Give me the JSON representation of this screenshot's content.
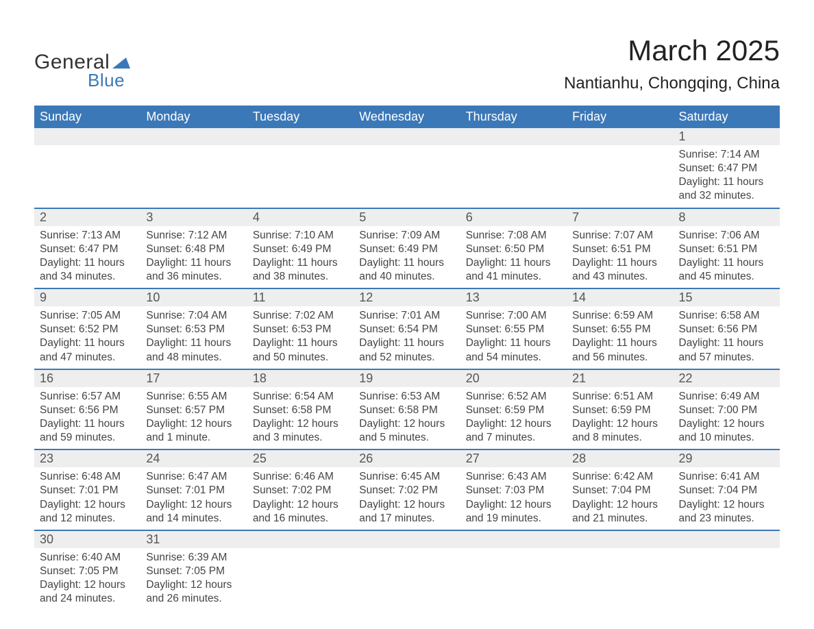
{
  "brand": {
    "part1": "General",
    "part2": "Blue",
    "accent_color": "#3b78b8"
  },
  "header": {
    "month_title": "March 2025",
    "location": "Nantianhu, Chongqing, China"
  },
  "colors": {
    "header_bg": "#3b78b8",
    "header_text": "#ffffff",
    "daynum_bg": "#eeeeee",
    "row_border": "#3b78b8",
    "body_text": "#444444",
    "page_bg": "#ffffff"
  },
  "calendar": {
    "day_labels": [
      "Sunday",
      "Monday",
      "Tuesday",
      "Wednesday",
      "Thursday",
      "Friday",
      "Saturday"
    ],
    "weeks": [
      [
        null,
        null,
        null,
        null,
        null,
        null,
        {
          "n": "1",
          "sunrise": "Sunrise: 7:14 AM",
          "sunset": "Sunset: 6:47 PM",
          "daylight": "Daylight: 11 hours and 32 minutes."
        }
      ],
      [
        {
          "n": "2",
          "sunrise": "Sunrise: 7:13 AM",
          "sunset": "Sunset: 6:47 PM",
          "daylight": "Daylight: 11 hours and 34 minutes."
        },
        {
          "n": "3",
          "sunrise": "Sunrise: 7:12 AM",
          "sunset": "Sunset: 6:48 PM",
          "daylight": "Daylight: 11 hours and 36 minutes."
        },
        {
          "n": "4",
          "sunrise": "Sunrise: 7:10 AM",
          "sunset": "Sunset: 6:49 PM",
          "daylight": "Daylight: 11 hours and 38 minutes."
        },
        {
          "n": "5",
          "sunrise": "Sunrise: 7:09 AM",
          "sunset": "Sunset: 6:49 PM",
          "daylight": "Daylight: 11 hours and 40 minutes."
        },
        {
          "n": "6",
          "sunrise": "Sunrise: 7:08 AM",
          "sunset": "Sunset: 6:50 PM",
          "daylight": "Daylight: 11 hours and 41 minutes."
        },
        {
          "n": "7",
          "sunrise": "Sunrise: 7:07 AM",
          "sunset": "Sunset: 6:51 PM",
          "daylight": "Daylight: 11 hours and 43 minutes."
        },
        {
          "n": "8",
          "sunrise": "Sunrise: 7:06 AM",
          "sunset": "Sunset: 6:51 PM",
          "daylight": "Daylight: 11 hours and 45 minutes."
        }
      ],
      [
        {
          "n": "9",
          "sunrise": "Sunrise: 7:05 AM",
          "sunset": "Sunset: 6:52 PM",
          "daylight": "Daylight: 11 hours and 47 minutes."
        },
        {
          "n": "10",
          "sunrise": "Sunrise: 7:04 AM",
          "sunset": "Sunset: 6:53 PM",
          "daylight": "Daylight: 11 hours and 48 minutes."
        },
        {
          "n": "11",
          "sunrise": "Sunrise: 7:02 AM",
          "sunset": "Sunset: 6:53 PM",
          "daylight": "Daylight: 11 hours and 50 minutes."
        },
        {
          "n": "12",
          "sunrise": "Sunrise: 7:01 AM",
          "sunset": "Sunset: 6:54 PM",
          "daylight": "Daylight: 11 hours and 52 minutes."
        },
        {
          "n": "13",
          "sunrise": "Sunrise: 7:00 AM",
          "sunset": "Sunset: 6:55 PM",
          "daylight": "Daylight: 11 hours and 54 minutes."
        },
        {
          "n": "14",
          "sunrise": "Sunrise: 6:59 AM",
          "sunset": "Sunset: 6:55 PM",
          "daylight": "Daylight: 11 hours and 56 minutes."
        },
        {
          "n": "15",
          "sunrise": "Sunrise: 6:58 AM",
          "sunset": "Sunset: 6:56 PM",
          "daylight": "Daylight: 11 hours and 57 minutes."
        }
      ],
      [
        {
          "n": "16",
          "sunrise": "Sunrise: 6:57 AM",
          "sunset": "Sunset: 6:56 PM",
          "daylight": "Daylight: 11 hours and 59 minutes."
        },
        {
          "n": "17",
          "sunrise": "Sunrise: 6:55 AM",
          "sunset": "Sunset: 6:57 PM",
          "daylight": "Daylight: 12 hours and 1 minute."
        },
        {
          "n": "18",
          "sunrise": "Sunrise: 6:54 AM",
          "sunset": "Sunset: 6:58 PM",
          "daylight": "Daylight: 12 hours and 3 minutes."
        },
        {
          "n": "19",
          "sunrise": "Sunrise: 6:53 AM",
          "sunset": "Sunset: 6:58 PM",
          "daylight": "Daylight: 12 hours and 5 minutes."
        },
        {
          "n": "20",
          "sunrise": "Sunrise: 6:52 AM",
          "sunset": "Sunset: 6:59 PM",
          "daylight": "Daylight: 12 hours and 7 minutes."
        },
        {
          "n": "21",
          "sunrise": "Sunrise: 6:51 AM",
          "sunset": "Sunset: 6:59 PM",
          "daylight": "Daylight: 12 hours and 8 minutes."
        },
        {
          "n": "22",
          "sunrise": "Sunrise: 6:49 AM",
          "sunset": "Sunset: 7:00 PM",
          "daylight": "Daylight: 12 hours and 10 minutes."
        }
      ],
      [
        {
          "n": "23",
          "sunrise": "Sunrise: 6:48 AM",
          "sunset": "Sunset: 7:01 PM",
          "daylight": "Daylight: 12 hours and 12 minutes."
        },
        {
          "n": "24",
          "sunrise": "Sunrise: 6:47 AM",
          "sunset": "Sunset: 7:01 PM",
          "daylight": "Daylight: 12 hours and 14 minutes."
        },
        {
          "n": "25",
          "sunrise": "Sunrise: 6:46 AM",
          "sunset": "Sunset: 7:02 PM",
          "daylight": "Daylight: 12 hours and 16 minutes."
        },
        {
          "n": "26",
          "sunrise": "Sunrise: 6:45 AM",
          "sunset": "Sunset: 7:02 PM",
          "daylight": "Daylight: 12 hours and 17 minutes."
        },
        {
          "n": "27",
          "sunrise": "Sunrise: 6:43 AM",
          "sunset": "Sunset: 7:03 PM",
          "daylight": "Daylight: 12 hours and 19 minutes."
        },
        {
          "n": "28",
          "sunrise": "Sunrise: 6:42 AM",
          "sunset": "Sunset: 7:04 PM",
          "daylight": "Daylight: 12 hours and 21 minutes."
        },
        {
          "n": "29",
          "sunrise": "Sunrise: 6:41 AM",
          "sunset": "Sunset: 7:04 PM",
          "daylight": "Daylight: 12 hours and 23 minutes."
        }
      ],
      [
        {
          "n": "30",
          "sunrise": "Sunrise: 6:40 AM",
          "sunset": "Sunset: 7:05 PM",
          "daylight": "Daylight: 12 hours and 24 minutes."
        },
        {
          "n": "31",
          "sunrise": "Sunrise: 6:39 AM",
          "sunset": "Sunset: 7:05 PM",
          "daylight": "Daylight: 12 hours and 26 minutes."
        },
        null,
        null,
        null,
        null,
        null
      ]
    ]
  }
}
